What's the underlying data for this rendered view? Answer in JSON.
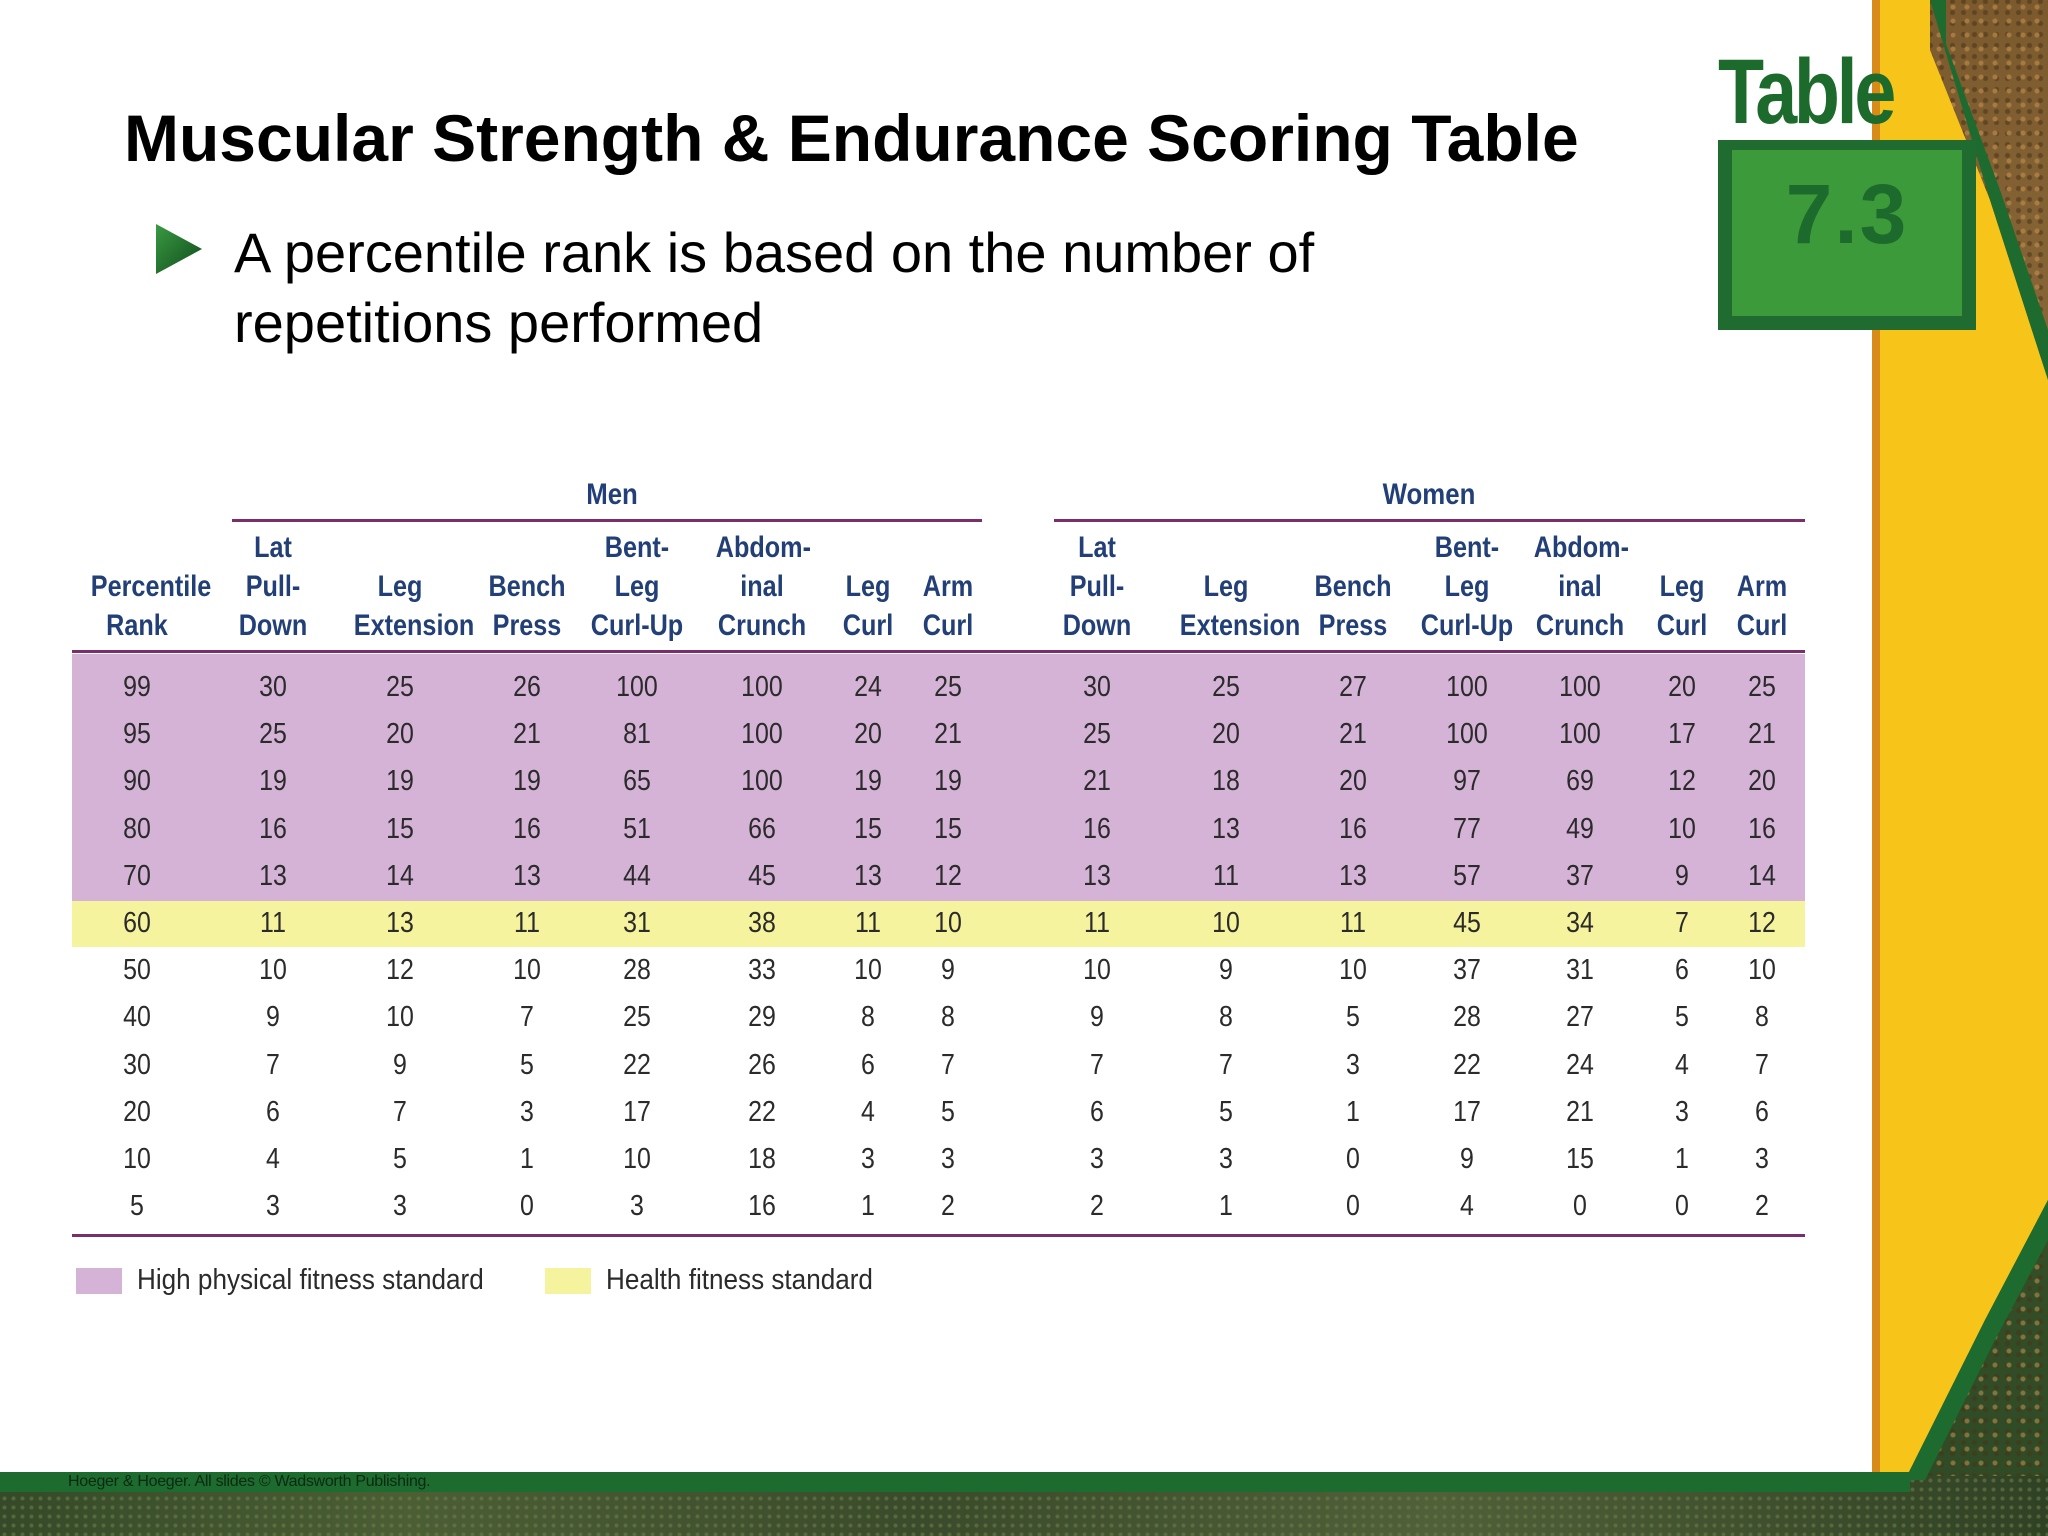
{
  "slide": {
    "title": "Muscular Strength & Endurance Scoring Table",
    "bullet": "A percentile rank is based on the number of repetitions performed",
    "badge_word": "Table",
    "badge_number": "7.3",
    "footer": "Hoeger & Hoeger. All slides © Wadsworth Publishing."
  },
  "colors": {
    "high_band": "#d4b3d6",
    "health_band": "#f6f39e",
    "rule": "#7b2e6e",
    "header_text": "#223f78",
    "badge_green": "#1d6b2c"
  },
  "table": {
    "group_men": "Men",
    "group_women": "Women",
    "rank_header": [
      "Percentile",
      "Rank"
    ],
    "men_headers": [
      [
        "Lat",
        "Pull-",
        "Down"
      ],
      [
        "Leg",
        "Extension"
      ],
      [
        "Bench",
        "Press"
      ],
      [
        "Bent-",
        "Leg",
        "Curl-Up"
      ],
      [
        "Abdom-",
        "inal",
        "Crunch"
      ],
      [
        "Leg",
        "Curl"
      ],
      [
        "Arm",
        "Curl"
      ]
    ],
    "women_headers": [
      [
        "Lat",
        "Pull-",
        "Down"
      ],
      [
        "Leg",
        "Extension"
      ],
      [
        "Bench",
        "Press"
      ],
      [
        "Bent-",
        "Leg",
        "Curl-Up"
      ],
      [
        "Abdom-",
        "inal",
        "Crunch"
      ],
      [
        "Leg",
        "Curl"
      ],
      [
        "Arm",
        "Curl"
      ]
    ],
    "rows": [
      {
        "rank": "99",
        "band": "high",
        "men": [
          "30",
          "25",
          "26",
          "100",
          "100",
          "24",
          "25"
        ],
        "women": [
          "30",
          "25",
          "27",
          "100",
          "100",
          "20",
          "25"
        ]
      },
      {
        "rank": "95",
        "band": "high",
        "men": [
          "25",
          "20",
          "21",
          "81",
          "100",
          "20",
          "21"
        ],
        "women": [
          "25",
          "20",
          "21",
          "100",
          "100",
          "17",
          "21"
        ]
      },
      {
        "rank": "90",
        "band": "high",
        "men": [
          "19",
          "19",
          "19",
          "65",
          "100",
          "19",
          "19"
        ],
        "women": [
          "21",
          "18",
          "20",
          "97",
          "69",
          "12",
          "20"
        ]
      },
      {
        "rank": "80",
        "band": "high",
        "men": [
          "16",
          "15",
          "16",
          "51",
          "66",
          "15",
          "15"
        ],
        "women": [
          "16",
          "13",
          "16",
          "77",
          "49",
          "10",
          "16"
        ]
      },
      {
        "rank": "70",
        "band": "high",
        "men": [
          "13",
          "14",
          "13",
          "44",
          "45",
          "13",
          "12"
        ],
        "women": [
          "13",
          "11",
          "13",
          "57",
          "37",
          "9",
          "14"
        ]
      },
      {
        "rank": "60",
        "band": "health",
        "men": [
          "11",
          "13",
          "11",
          "31",
          "38",
          "11",
          "10"
        ],
        "women": [
          "11",
          "10",
          "11",
          "45",
          "34",
          "7",
          "12"
        ]
      },
      {
        "rank": "50",
        "band": "none",
        "men": [
          "10",
          "12",
          "10",
          "28",
          "33",
          "10",
          "9"
        ],
        "women": [
          "10",
          "9",
          "10",
          "37",
          "31",
          "6",
          "10"
        ]
      },
      {
        "rank": "40",
        "band": "none",
        "men": [
          "9",
          "10",
          "7",
          "25",
          "29",
          "8",
          "8"
        ],
        "women": [
          "9",
          "8",
          "5",
          "28",
          "27",
          "5",
          "8"
        ]
      },
      {
        "rank": "30",
        "band": "none",
        "men": [
          "7",
          "9",
          "5",
          "22",
          "26",
          "6",
          "7"
        ],
        "women": [
          "7",
          "7",
          "3",
          "22",
          "24",
          "4",
          "7"
        ]
      },
      {
        "rank": "20",
        "band": "none",
        "men": [
          "6",
          "7",
          "3",
          "17",
          "22",
          "4",
          "5"
        ],
        "women": [
          "6",
          "5",
          "1",
          "17",
          "21",
          "3",
          "6"
        ]
      },
      {
        "rank": "10",
        "band": "none",
        "men": [
          "4",
          "5",
          "1",
          "10",
          "18",
          "3",
          "3"
        ],
        "women": [
          "3",
          "3",
          "0",
          "9",
          "15",
          "1",
          "3"
        ]
      },
      {
        "rank": "5",
        "band": "none",
        "men": [
          "3",
          "3",
          "0",
          "3",
          "16",
          "1",
          "2"
        ],
        "women": [
          "2",
          "1",
          "0",
          "4",
          "0",
          "0",
          "2"
        ]
      }
    ],
    "legend": [
      {
        "label": "High physical fitness standard",
        "color": "#d4b3d6"
      },
      {
        "label": "Health fitness standard",
        "color": "#f6f39e"
      }
    ]
  }
}
